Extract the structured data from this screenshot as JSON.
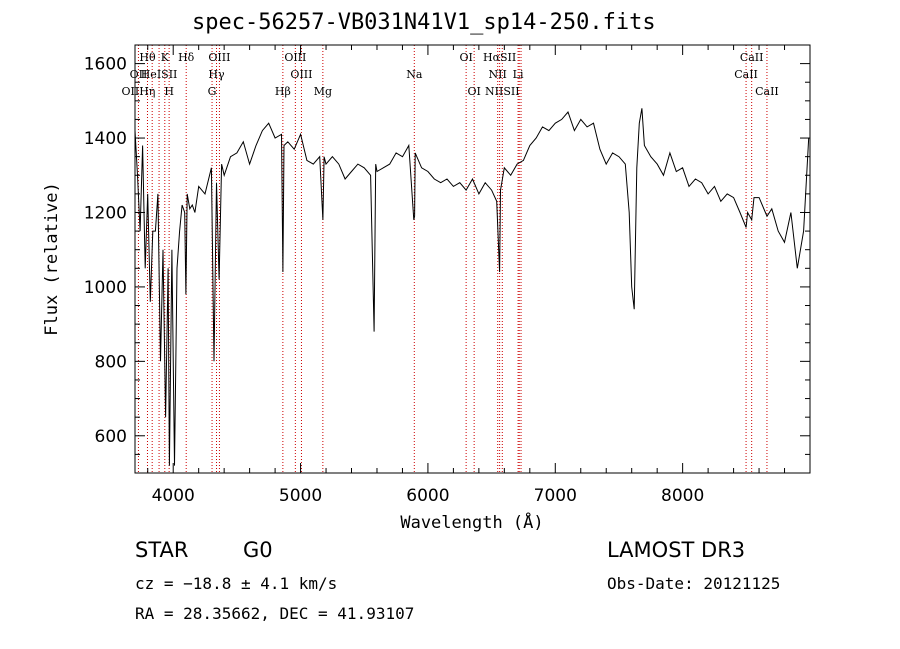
{
  "chart_data": {
    "type": "line",
    "title": "spec-56257-VB031N41V1_sp14-250.fits",
    "xlabel": "Wavelength (Å)",
    "ylabel": "Flux (relative)",
    "xlim": [
      3700,
      9000
    ],
    "ylim": [
      500,
      1650
    ],
    "x_ticks": [
      4000,
      5000,
      6000,
      7000,
      8000
    ],
    "y_ticks": [
      600,
      800,
      1000,
      1200,
      1400,
      1600
    ],
    "series": [
      {
        "name": "flux",
        "x": [
          3700,
          3720,
          3740,
          3760,
          3780,
          3800,
          3820,
          3840,
          3860,
          3880,
          3900,
          3920,
          3940,
          3960,
          3970,
          3990,
          4010,
          4030,
          4050,
          4070,
          4090,
          4100,
          4110,
          4130,
          4150,
          4170,
          4200,
          4250,
          4300,
          4320,
          4340,
          4360,
          4380,
          4400,
          4450,
          4500,
          4550,
          4600,
          4650,
          4700,
          4750,
          4800,
          4850,
          4861,
          4870,
          4900,
          4950,
          5000,
          5050,
          5100,
          5150,
          5175,
          5185,
          5200,
          5250,
          5300,
          5350,
          5400,
          5450,
          5500,
          5550,
          5577,
          5590,
          5600,
          5650,
          5700,
          5750,
          5800,
          5850,
          5889,
          5895,
          5900,
          5950,
          6000,
          6050,
          6100,
          6150,
          6200,
          6250,
          6300,
          6350,
          6400,
          6450,
          6500,
          6540,
          6563,
          6570,
          6580,
          6600,
          6650,
          6700,
          6750,
          6800,
          6850,
          6900,
          6950,
          7000,
          7050,
          7100,
          7150,
          7200,
          7250,
          7300,
          7350,
          7400,
          7450,
          7500,
          7550,
          7580,
          7600,
          7620,
          7640,
          7660,
          7680,
          7700,
          7750,
          7800,
          7850,
          7900,
          7950,
          8000,
          8050,
          8100,
          8150,
          8200,
          8250,
          8300,
          8350,
          8400,
          8450,
          8498,
          8510,
          8542,
          8560,
          8600,
          8650,
          8662,
          8700,
          8750,
          8800,
          8850,
          8900,
          8950,
          8990
        ],
        "y": [
          1420,
          1300,
          1150,
          1380,
          1050,
          1250,
          960,
          1150,
          1150,
          1250,
          800,
          1100,
          650,
          1050,
          520,
          1100,
          520,
          1050,
          1150,
          1220,
          1200,
          980,
          1250,
          1210,
          1220,
          1200,
          1270,
          1250,
          1320,
          800,
          1280,
          1020,
          1330,
          1300,
          1350,
          1360,
          1390,
          1330,
          1380,
          1420,
          1440,
          1400,
          1410,
          1040,
          1380,
          1390,
          1370,
          1410,
          1340,
          1330,
          1350,
          1180,
          1350,
          1330,
          1350,
          1330,
          1290,
          1310,
          1330,
          1320,
          1300,
          880,
          1330,
          1310,
          1320,
          1330,
          1360,
          1350,
          1380,
          1180,
          1190,
          1360,
          1320,
          1310,
          1290,
          1280,
          1290,
          1270,
          1280,
          1260,
          1290,
          1250,
          1280,
          1260,
          1230,
          1040,
          1260,
          1280,
          1320,
          1300,
          1330,
          1340,
          1380,
          1400,
          1430,
          1420,
          1440,
          1450,
          1470,
          1420,
          1450,
          1430,
          1440,
          1370,
          1330,
          1360,
          1350,
          1330,
          1200,
          1000,
          940,
          1320,
          1440,
          1480,
          1380,
          1350,
          1330,
          1300,
          1360,
          1310,
          1320,
          1270,
          1290,
          1280,
          1250,
          1270,
          1230,
          1250,
          1240,
          1200,
          1160,
          1200,
          1180,
          1240,
          1240,
          1200,
          1190,
          1210,
          1150,
          1120,
          1200,
          1050,
          1150,
          1400
        ]
      }
    ],
    "line_markers": [
      {
        "label": "Hθ",
        "x": 3798,
        "row": 0
      },
      {
        "label": "K",
        "x": 3934,
        "row": 0
      },
      {
        "label": "Hδ",
        "x": 4102,
        "row": 0
      },
      {
        "label": "OIII",
        "x": 4363,
        "row": 0
      },
      {
        "label": "OIII",
        "x": 4959,
        "row": 0
      },
      {
        "label": "OI",
        "x": 6300,
        "row": 0
      },
      {
        "label": "HαSII",
        "x": 6563,
        "row": 0
      },
      {
        "label": "CaII",
        "x": 8542,
        "row": 0
      },
      {
        "label": "OII",
        "x": 3727,
        "row": 1
      },
      {
        "label": "HeISII",
        "x": 3889,
        "row": 1
      },
      {
        "label": "Hγ",
        "x": 4340,
        "row": 1
      },
      {
        "label": "OIII",
        "x": 5007,
        "row": 1
      },
      {
        "label": "Na",
        "x": 5893,
        "row": 1
      },
      {
        "label": "NII",
        "x": 6548,
        "row": 1
      },
      {
        "label": "Li",
        "x": 6708,
        "row": 1
      },
      {
        "label": "CaII",
        "x": 8498,
        "row": 1
      },
      {
        "label": "OIIHη",
        "x": 3727,
        "row": 2
      },
      {
        "label": "H",
        "x": 3968,
        "row": 2
      },
      {
        "label": "G",
        "x": 4305,
        "row": 2
      },
      {
        "label": "Hβ",
        "x": 4861,
        "row": 2
      },
      {
        "label": "Mg",
        "x": 5175,
        "row": 2
      },
      {
        "label": "OI",
        "x": 6363,
        "row": 2
      },
      {
        "label": "NIISII",
        "x": 6584,
        "row": 2
      },
      {
        "label": "CaII",
        "x": 8662,
        "row": 2
      }
    ],
    "marker_lines_x": [
      3727,
      3798,
      3835,
      3889,
      3934,
      3968,
      4102,
      4305,
      4340,
      4363,
      4861,
      4959,
      5007,
      5175,
      5893,
      6300,
      6363,
      6548,
      6563,
      6584,
      6708,
      6717,
      6731,
      8498,
      8542,
      8662
    ],
    "marker_line_color": "#cc0000"
  },
  "info": {
    "object_class": "STAR",
    "subclass": "G0",
    "survey": "LAMOST DR3",
    "cz": "cz = −18.8 ± 4.1 km/s",
    "obs_date": "Obs-Date: 20121125",
    "coords": "RA =  28.35662, DEC =  41.93107"
  }
}
